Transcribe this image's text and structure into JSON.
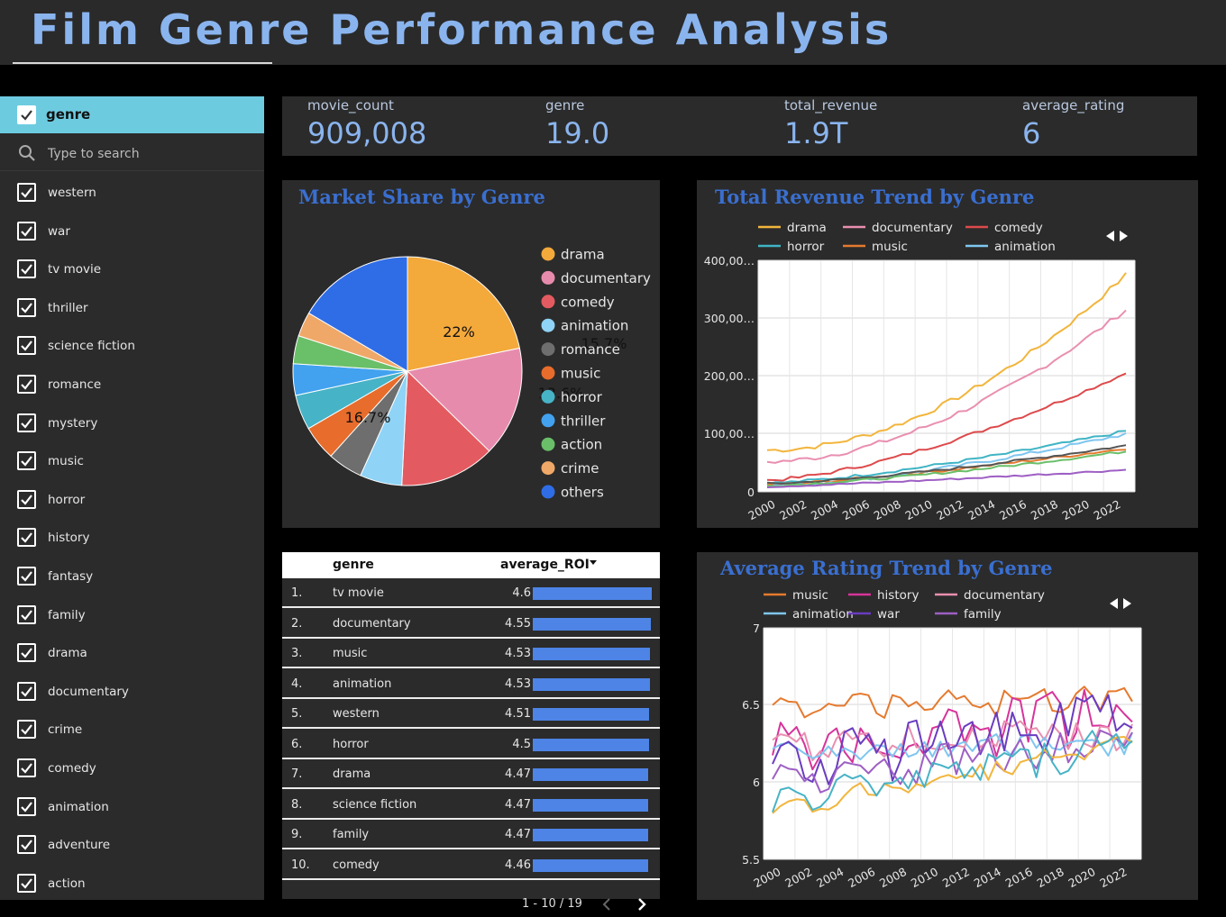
{
  "header": {
    "title": "Film Genre  Performance Analysis"
  },
  "sidebar": {
    "header_label": "genre",
    "search_placeholder": "Type to search",
    "items": [
      "western",
      "war",
      "tv movie",
      "thriller",
      "science fiction",
      "romance",
      "mystery",
      "music",
      "horror",
      "history",
      "fantasy",
      "family",
      "drama",
      "documentary",
      "crime",
      "comedy",
      "animation",
      "adventure",
      "action"
    ]
  },
  "scorecard": [
    {
      "label": "movie_count",
      "value": "909,008"
    },
    {
      "label": "genre",
      "value": "19.0"
    },
    {
      "label": "total_revenue",
      "value": "1.9T"
    },
    {
      "label": "average_rating",
      "value": "6"
    }
  ],
  "pie": {
    "title": "Market Share by Genre",
    "legend": [
      {
        "name": "drama",
        "color": "#f4a93b",
        "value": 22
      },
      {
        "name": "documentary",
        "color": "#e78bac",
        "value": 15.7
      },
      {
        "name": "comedy",
        "color": "#e35b60",
        "value": 13.6
      },
      {
        "name": "animation",
        "color": "#8fd3f6",
        "value": 6
      },
      {
        "name": "romance",
        "color": "#6e6e6e",
        "value": 5
      },
      {
        "name": "music",
        "color": "#e86c2b",
        "value": 5
      },
      {
        "name": "horror",
        "color": "#47b3c6",
        "value": 5
      },
      {
        "name": "thriller",
        "color": "#42a2ef",
        "value": 4.5
      },
      {
        "name": "action",
        "color": "#6abf69",
        "value": 4
      },
      {
        "name": "crime",
        "color": "#f0a868",
        "value": 3.5
      },
      {
        "name": "others",
        "color": "#2f6de6",
        "value": 16.7
      }
    ],
    "labels": [
      "22%",
      "15.7%",
      "13.6%",
      "16.7%"
    ]
  },
  "table": {
    "col_genre": "genre",
    "col_roi": "average_ROI",
    "rows": [
      {
        "rank": "1.",
        "genre": "tv movie",
        "roi": "4.6"
      },
      {
        "rank": "2.",
        "genre": "documentary",
        "roi": "4.55"
      },
      {
        "rank": "3.",
        "genre": "music",
        "roi": "4.53"
      },
      {
        "rank": "4.",
        "genre": "animation",
        "roi": "4.53"
      },
      {
        "rank": "5.",
        "genre": "western",
        "roi": "4.51"
      },
      {
        "rank": "6.",
        "genre": "horror",
        "roi": "4.5"
      },
      {
        "rank": "7.",
        "genre": "drama",
        "roi": "4.47"
      },
      {
        "rank": "8.",
        "genre": "science fiction",
        "roi": "4.47"
      },
      {
        "rank": "9.",
        "genre": "family",
        "roi": "4.47"
      },
      {
        "rank": "10.",
        "genre": "comedy",
        "roi": "4.46"
      }
    ],
    "pager": "1 - 10 / 19"
  },
  "revenue_chart": {
    "title": "Total Revenue Trend by Genre",
    "legend": [
      {
        "name": "drama",
        "color": "#f2b53c"
      },
      {
        "name": "documentary",
        "color": "#e98fb0"
      },
      {
        "name": "comedy",
        "color": "#dd4a4c"
      },
      {
        "name": "horror",
        "color": "#3fb4c4"
      },
      {
        "name": "music",
        "color": "#e57a2f"
      },
      {
        "name": "animation",
        "color": "#7fc6f0"
      }
    ],
    "yticks": [
      "400,00…",
      "300,00…",
      "200,00…",
      "100,00…",
      "0"
    ],
    "xticks": [
      "2000",
      "2002",
      "2004",
      "2006",
      "2008",
      "2010",
      "2012",
      "2014",
      "2016",
      "2018",
      "2020",
      "2022"
    ]
  },
  "rating_chart": {
    "title": "Average Rating Trend by Genre",
    "legend": [
      {
        "name": "music",
        "color": "#e57a2f"
      },
      {
        "name": "history",
        "color": "#d6349a"
      },
      {
        "name": "documentary",
        "color": "#e98fb0"
      },
      {
        "name": "animation",
        "color": "#7fc6f0"
      },
      {
        "name": "war",
        "color": "#6a3cc0"
      },
      {
        "name": "family",
        "color": "#9e5fc4"
      }
    ],
    "yticks": [
      "7",
      "6.5",
      "6",
      "5.5"
    ],
    "xticks": [
      "2000",
      "2002",
      "2004",
      "2006",
      "2008",
      "2010",
      "2012",
      "2014",
      "2016",
      "2018",
      "2020",
      "2022"
    ]
  }
}
